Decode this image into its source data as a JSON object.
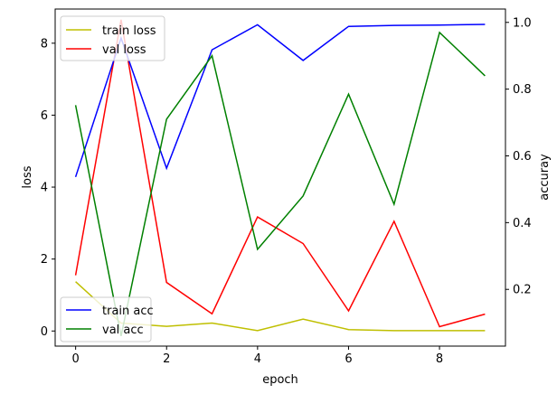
{
  "chart_data": {
    "type": "line",
    "xlabel": "epoch",
    "ylabel_left": "loss",
    "ylabel_right": "accuray",
    "x": [
      0,
      1,
      2,
      3,
      4,
      5,
      6,
      7,
      8,
      9
    ],
    "x_ticks": [
      "0",
      "2",
      "4",
      "6",
      "8"
    ],
    "x_tick_values": [
      0,
      2,
      4,
      6,
      8
    ],
    "xlim": [
      -0.45,
      9.45
    ],
    "ylim_left": [
      -0.42,
      8.95
    ],
    "ylim_right": [
      0.03,
      1.04
    ],
    "y_left_ticks": [
      "0",
      "2",
      "4",
      "6",
      "8"
    ],
    "y_left_tick_values": [
      0,
      2,
      4,
      6,
      8
    ],
    "y_right_ticks": [
      "0.2",
      "0.4",
      "0.6",
      "0.8",
      "1.0"
    ],
    "y_right_tick_values": [
      0.2,
      0.4,
      0.6,
      0.8,
      1.0
    ],
    "grid": false,
    "series_left": [
      {
        "name": "train loss",
        "color": "#bfbf00",
        "values": [
          1.37,
          0.22,
          0.13,
          0.22,
          0.01,
          0.33,
          0.04,
          0.01,
          0.01,
          0.01
        ]
      },
      {
        "name": "val loss",
        "color": "#ff0000",
        "values": [
          1.55,
          8.65,
          1.35,
          0.48,
          3.17,
          2.43,
          0.56,
          3.05,
          0.12,
          0.47
        ]
      }
    ],
    "series_right": [
      {
        "name": "train acc",
        "color": "#0000ff",
        "values": [
          0.537,
          0.953,
          0.563,
          0.918,
          0.993,
          0.886,
          0.988,
          0.991,
          0.992,
          0.994
        ]
      },
      {
        "name": "val acc",
        "color": "#008000",
        "values": [
          0.752,
          0.06,
          0.71,
          0.9,
          0.32,
          0.48,
          0.785,
          0.455,
          0.97,
          0.84
        ]
      }
    ],
    "legend_left_placement": "upper left",
    "legend_right_placement": "lower left"
  }
}
